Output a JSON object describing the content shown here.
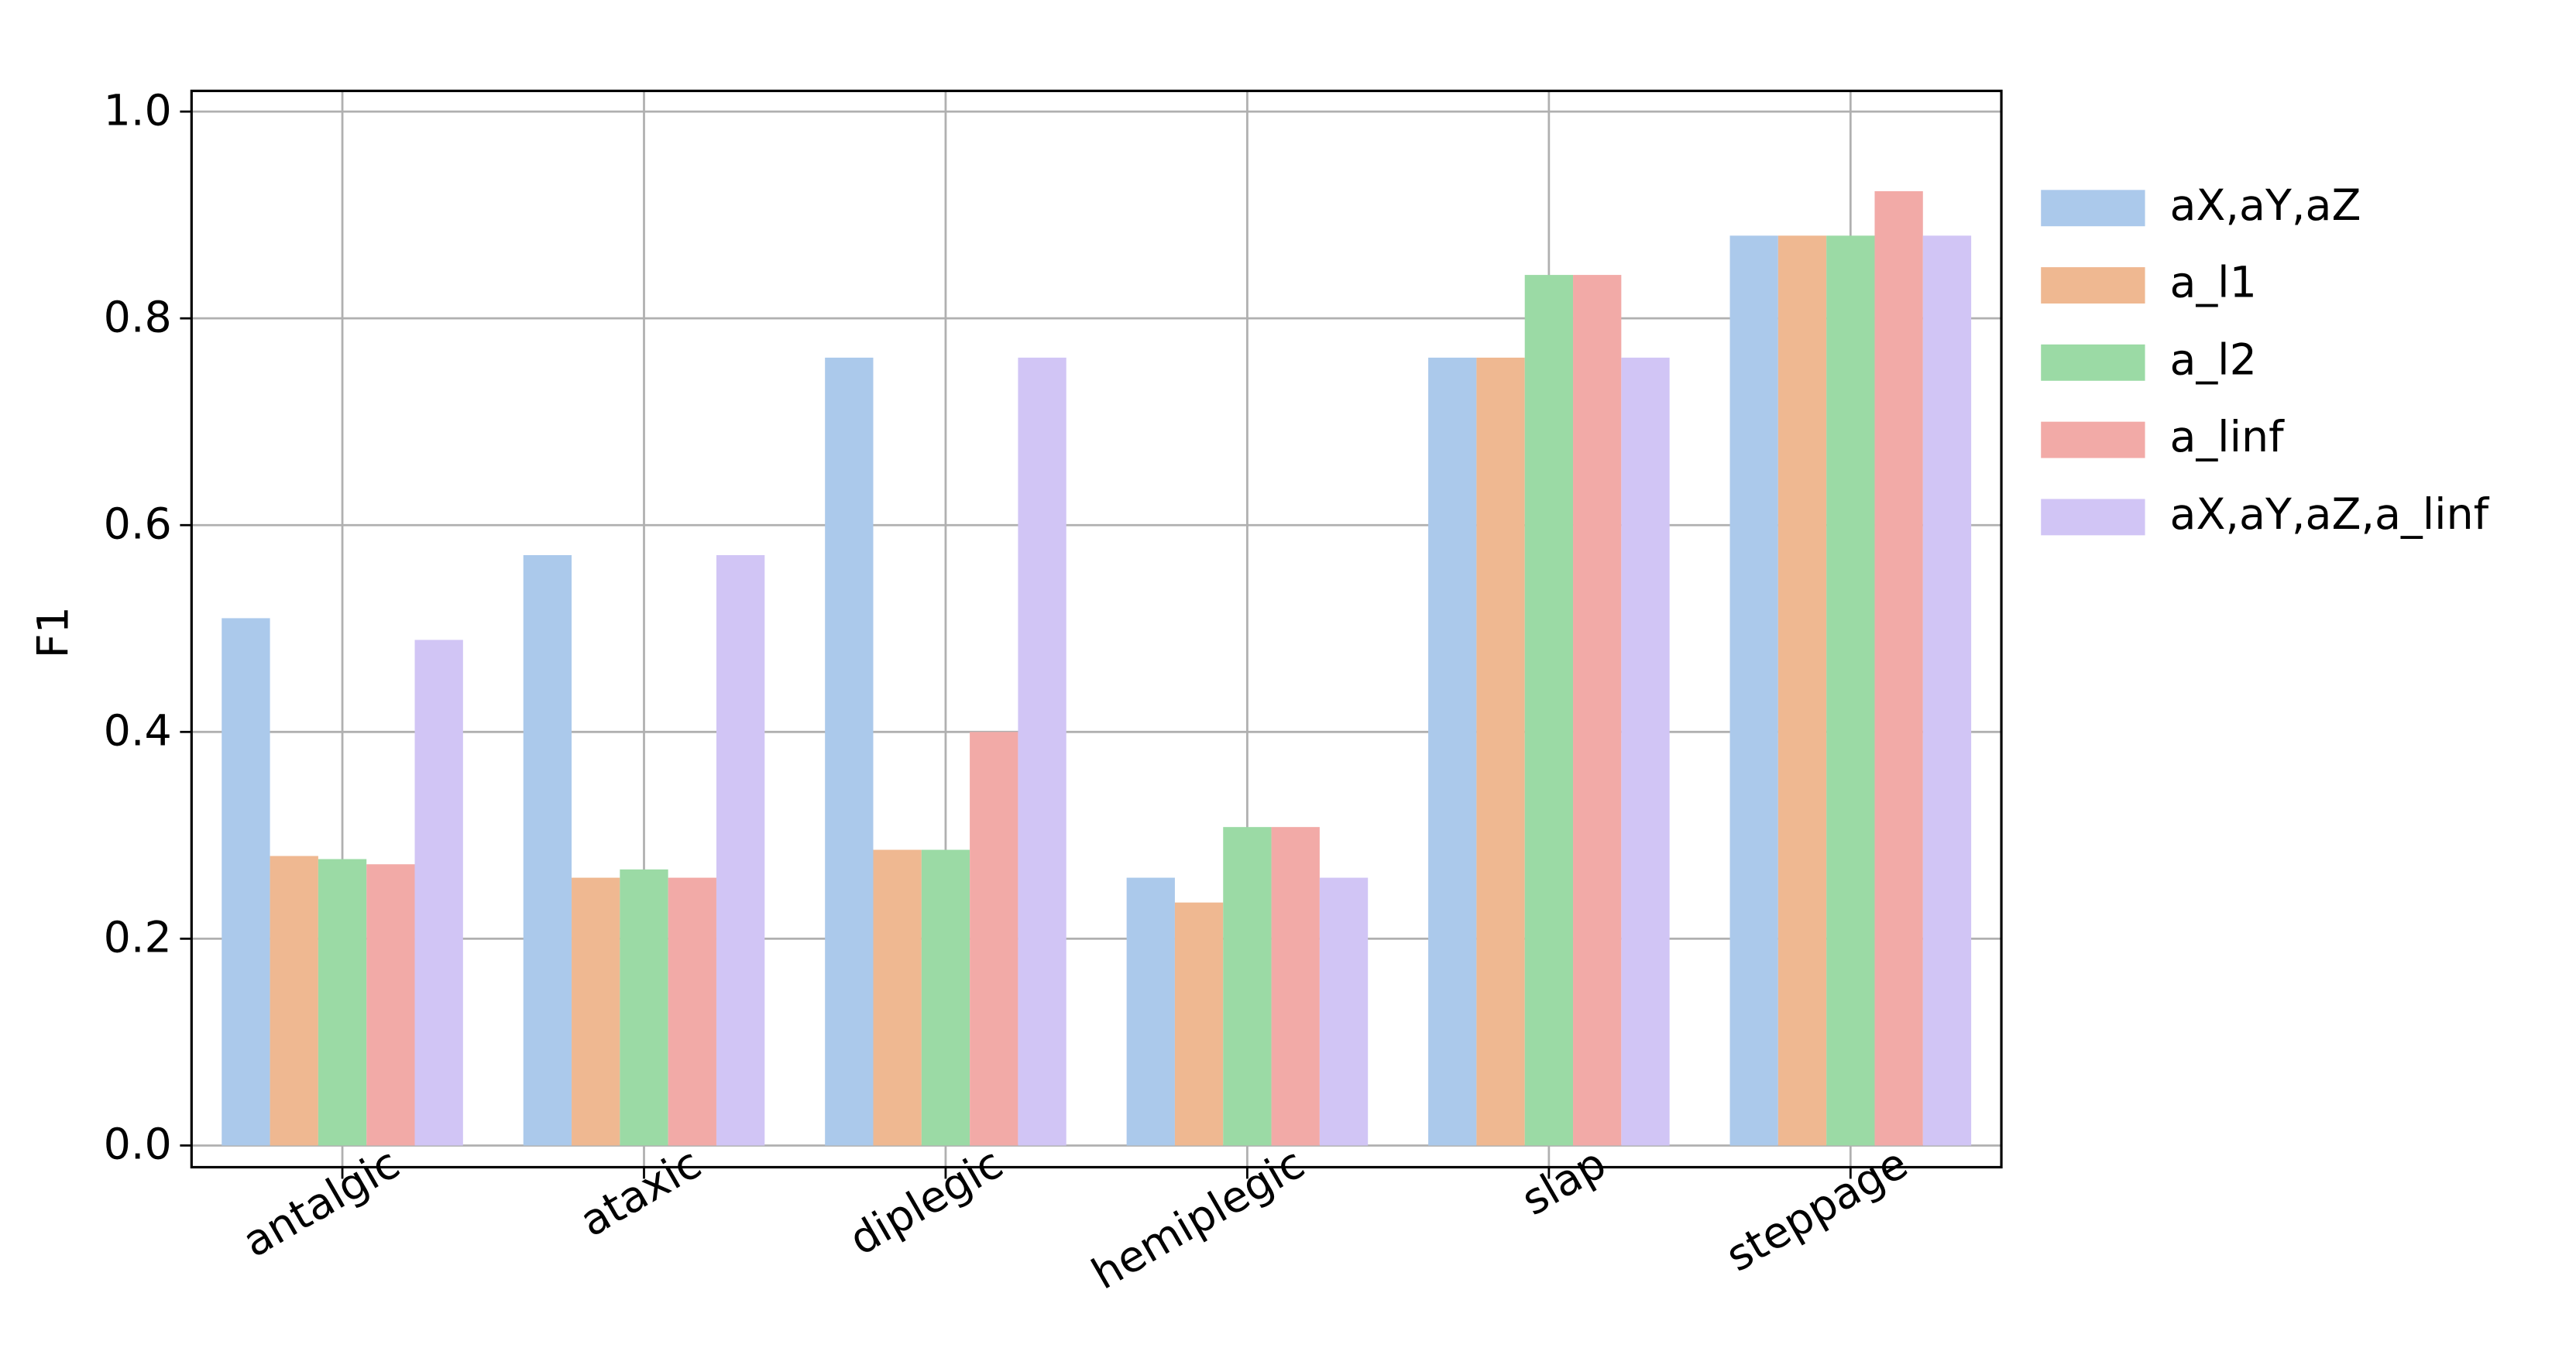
{
  "chart_data": {
    "type": "bar",
    "categories": [
      "antalgic",
      "ataxic",
      "diplegic",
      "hemiplegic",
      "slap",
      "steppage"
    ],
    "y_label": "F1",
    "series": [
      {
        "name": "aX,aY,aZ",
        "color": "#abc9eb",
        "values": [
          0.51,
          0.571,
          0.762,
          0.259,
          0.762,
          0.88
        ]
      },
      {
        "name": "a_l1",
        "color": "#efb891",
        "values": [
          0.28,
          0.259,
          0.286,
          0.235,
          0.762,
          0.88
        ]
      },
      {
        "name": "a_l2",
        "color": "#9bdaa5",
        "values": [
          0.277,
          0.267,
          0.286,
          0.308,
          0.842,
          0.88
        ]
      },
      {
        "name": "a_linf",
        "color": "#f2aaa7",
        "values": [
          0.272,
          0.259,
          0.4,
          0.308,
          0.842,
          0.923
        ]
      },
      {
        "name": "aX,aY,aZ,a_linf",
        "color": "#d1c5f5",
        "values": [
          0.489,
          0.571,
          0.762,
          0.259,
          0.762,
          0.88
        ]
      }
    ],
    "ylim": [
      -0.021,
      1.02
    ],
    "yticks": [
      {
        "value": 0,
        "label": "0.0"
      },
      0.2,
      0.4,
      0.6,
      0.8,
      {
        "value": 1,
        "label": "1.0"
      }
    ],
    "grid": true,
    "legend": "outside-right"
  }
}
